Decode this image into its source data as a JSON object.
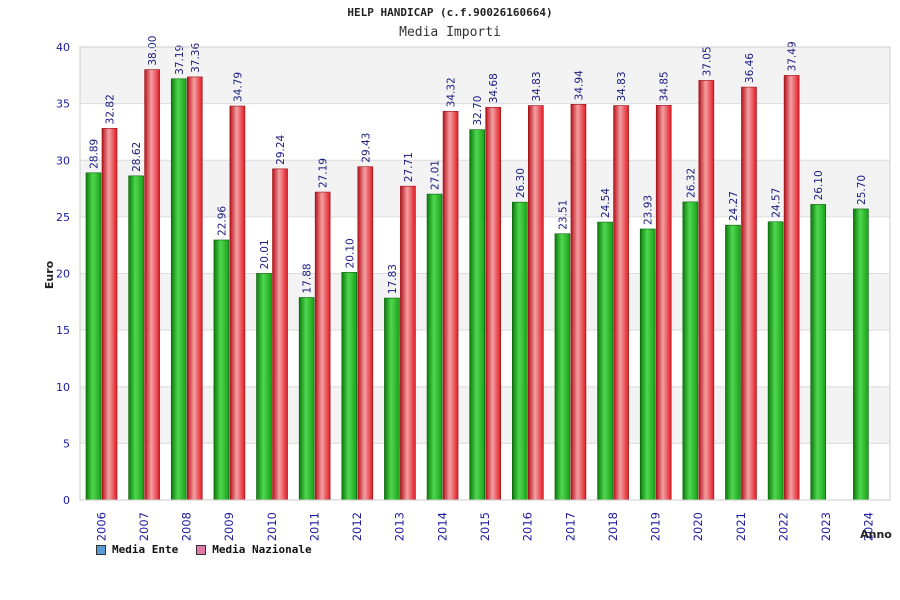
{
  "chart_data": {
    "type": "bar",
    "title": "HELP HANDICAP (c.f.90026160664)",
    "subtitle": "Media Importi",
    "xlabel": "Anno",
    "ylabel": "Euro",
    "ylim": [
      0,
      40
    ],
    "yticks": [
      0,
      5,
      10,
      15,
      20,
      25,
      30,
      35,
      40
    ],
    "grid": true,
    "legend_position": "bottom-left",
    "categories": [
      "2006",
      "2007",
      "2008",
      "2009",
      "2010",
      "2011",
      "2012",
      "2013",
      "2014",
      "2015",
      "2016",
      "2017",
      "2018",
      "2019",
      "2020",
      "2021",
      "2022",
      "2023",
      "2024"
    ],
    "series": [
      {
        "name": "Media Ente",
        "legend_color": "#5b9bd5",
        "bar_color": "#1aa01a",
        "values": [
          28.89,
          28.62,
          37.19,
          22.96,
          20.01,
          17.88,
          20.1,
          17.83,
          27.01,
          32.7,
          26.3,
          23.51,
          24.54,
          23.93,
          26.32,
          24.27,
          24.57,
          26.1,
          25.7
        ],
        "labels": [
          "28.89",
          "28.62",
          "37.19",
          "22.96",
          "20.01",
          "17.88",
          "20.10",
          "17.83",
          "27.01",
          "32.70",
          "26.30",
          "23.51",
          "24.54",
          "23.93",
          "26.32",
          "24.27",
          "24.57",
          "26.10",
          "25.70"
        ]
      },
      {
        "name": "Media Nazionale",
        "legend_color": "#e07aa8",
        "bar_color": "#e01c24",
        "values": [
          32.82,
          38.0,
          37.36,
          34.79,
          29.24,
          27.19,
          29.43,
          27.71,
          34.32,
          34.68,
          34.83,
          34.94,
          34.83,
          34.85,
          37.05,
          36.46,
          37.49,
          null,
          null
        ],
        "labels": [
          "32.82",
          "38.00",
          "37.36",
          "34.79",
          "29.24",
          "27.19",
          "29.43",
          "27.71",
          "34.32",
          "34.68",
          "34.83",
          "34.94",
          "34.83",
          "34.85",
          "37.05",
          "36.46",
          "37.49",
          null,
          null
        ]
      }
    ]
  }
}
